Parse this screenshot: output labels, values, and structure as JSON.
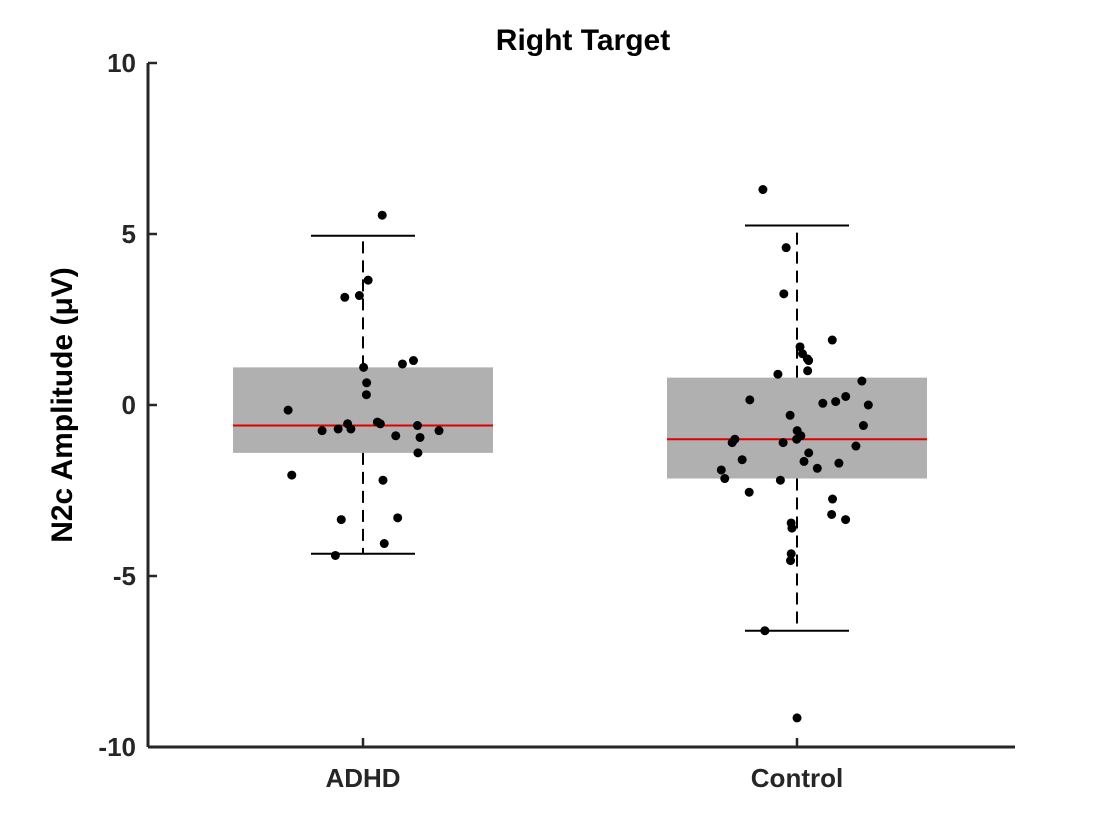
{
  "chart_data": {
    "type": "box",
    "title": "Right Target",
    "ylabel": "N2c Amplitude (μV)",
    "xlabel": "",
    "ylim": [
      -10,
      10
    ],
    "yticks": [
      -10,
      -5,
      0,
      5,
      10
    ],
    "categories": [
      "ADHD",
      "Control"
    ],
    "grid": false,
    "colors": {
      "box": "#b0b0b0",
      "median": "#e00000",
      "points": "#000000",
      "whisker": "#000000"
    },
    "groups": [
      {
        "name": "ADHD",
        "q1": -1.4,
        "median": -0.6,
        "q3": 1.1,
        "whisker_low": -4.35,
        "whisker_high": 4.95,
        "points": [
          5.55,
          3.65,
          3.2,
          3.15,
          1.3,
          1.2,
          1.1,
          0.65,
          0.3,
          -0.15,
          -0.5,
          -0.55,
          -0.55,
          -0.6,
          -0.7,
          -0.7,
          -0.75,
          -0.75,
          -0.9,
          -0.95,
          -1.4,
          -2.05,
          -2.2,
          -3.3,
          -3.35,
          -4.05,
          -4.4
        ]
      },
      {
        "name": "Control",
        "q1": -2.15,
        "median": -1.0,
        "q3": 0.8,
        "whisker_low": -6.6,
        "whisker_high": 5.25,
        "points": [
          6.3,
          4.6,
          3.25,
          1.9,
          1.7,
          1.5,
          1.35,
          1.3,
          1.0,
          0.9,
          0.7,
          0.25,
          0.15,
          0.1,
          0.05,
          0.0,
          -0.3,
          -0.6,
          -0.75,
          -0.9,
          -1.0,
          -1.0,
          -1.1,
          -1.1,
          -1.2,
          -1.4,
          -1.6,
          -1.65,
          -1.7,
          -1.9,
          -1.85,
          -2.15,
          -2.2,
          -2.55,
          -2.75,
          -3.2,
          -3.35,
          -3.45,
          -3.6,
          -4.35,
          -4.55,
          -6.6,
          -9.15
        ]
      }
    ]
  }
}
